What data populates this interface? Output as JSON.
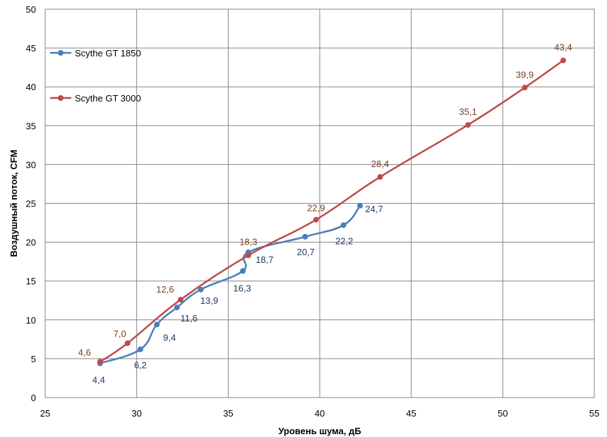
{
  "chart_data": {
    "type": "line",
    "title": "",
    "xlabel": "Уровень шума, дБ",
    "ylabel": "Воздушный поток, CFM",
    "xlim": [
      25,
      55
    ],
    "ylim": [
      0,
      50
    ],
    "xticks": [
      25,
      30,
      35,
      40,
      45,
      50,
      55
    ],
    "yticks": [
      0,
      5,
      10,
      15,
      20,
      25,
      30,
      35,
      40,
      45,
      50
    ],
    "grid": true,
    "legend_position": "top-left",
    "series": [
      {
        "name": "Scythe GT 1850",
        "color": "#4a7ebb",
        "label_color": "#1f3864",
        "points": [
          {
            "x": 28.0,
            "y": 4.4,
            "label": "4,4"
          },
          {
            "x": 30.2,
            "y": 6.2,
            "label": "6,2"
          },
          {
            "x": 31.1,
            "y": 9.4,
            "label": "9,4"
          },
          {
            "x": 32.2,
            "y": 11.6,
            "label": "11,6"
          },
          {
            "x": 33.5,
            "y": 13.9,
            "label": "13,9"
          },
          {
            "x": 35.8,
            "y": 16.3,
            "label": "16,3"
          },
          {
            "x": 36.1,
            "y": 18.7,
            "label": "18,7"
          },
          {
            "x": 39.2,
            "y": 20.7,
            "label": "20,7"
          },
          {
            "x": 41.3,
            "y": 22.2,
            "label": "22,2"
          },
          {
            "x": 42.2,
            "y": 24.7,
            "label": "24,7"
          }
        ]
      },
      {
        "name": "Scythe GT 3000",
        "color": "#be4b48",
        "label_color": "#7f3b1f",
        "points": [
          {
            "x": 28.0,
            "y": 4.6,
            "label": "4,6"
          },
          {
            "x": 29.5,
            "y": 7.0,
            "label": "7,0"
          },
          {
            "x": 32.4,
            "y": 12.6,
            "label": "12,6"
          },
          {
            "x": 36.1,
            "y": 18.3,
            "label": "18,3"
          },
          {
            "x": 39.8,
            "y": 22.9,
            "label": "22,9"
          },
          {
            "x": 43.3,
            "y": 28.4,
            "label": "28,4"
          },
          {
            "x": 48.1,
            "y": 35.1,
            "label": "35,1"
          },
          {
            "x": 51.2,
            "y": 39.9,
            "label": "39,9"
          },
          {
            "x": 53.3,
            "y": 43.4,
            "label": "43,4"
          }
        ]
      }
    ]
  }
}
